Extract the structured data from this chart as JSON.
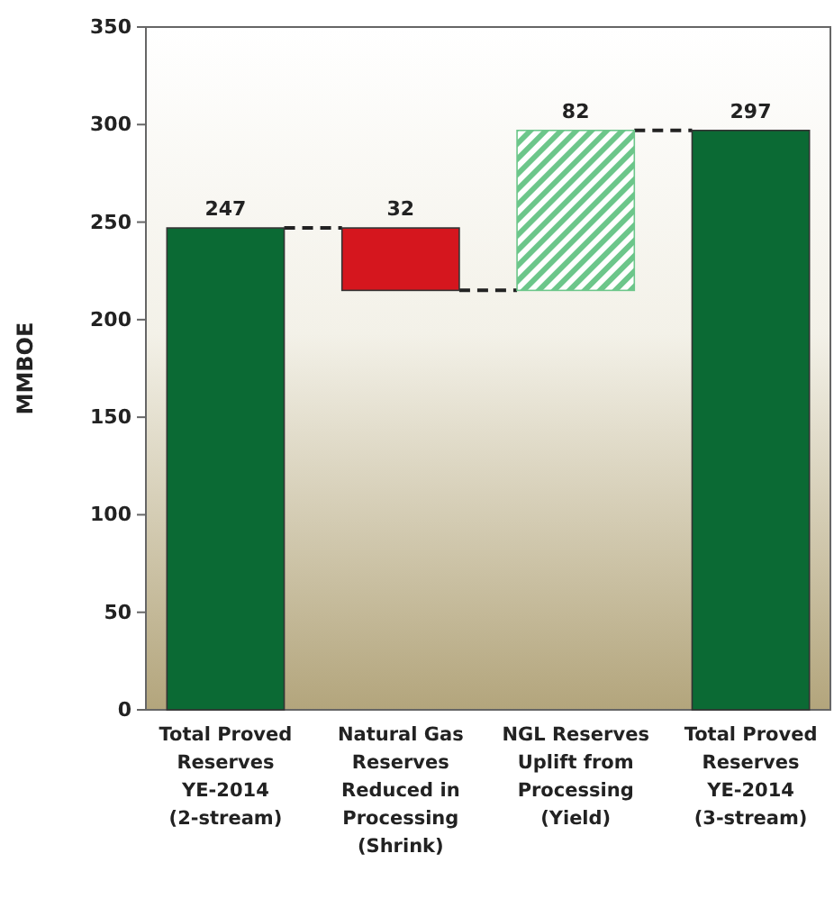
{
  "chart_data": {
    "type": "bar",
    "ylabel": "MMBOE",
    "categories": [
      "Total Proved Reserves YE-2014 (2-stream)",
      "Natural Gas Reserves Reduced in Processing (Shrink)",
      "NGL Reserves Uplift from Processing (Yield)",
      "Total Proved Reserves YE-2014 (3-stream)"
    ],
    "values": [
      247,
      32,
      82,
      297
    ],
    "base": [
      0,
      215,
      215,
      0
    ],
    "colors": [
      "#0b6a34",
      "#d5161e",
      "#6cc68a",
      "#0b6a34"
    ],
    "ylim": [
      0,
      350
    ],
    "yticks": [
      0,
      50,
      100,
      150,
      200,
      250,
      300,
      350
    ],
    "data_labels": true,
    "grid": false
  }
}
